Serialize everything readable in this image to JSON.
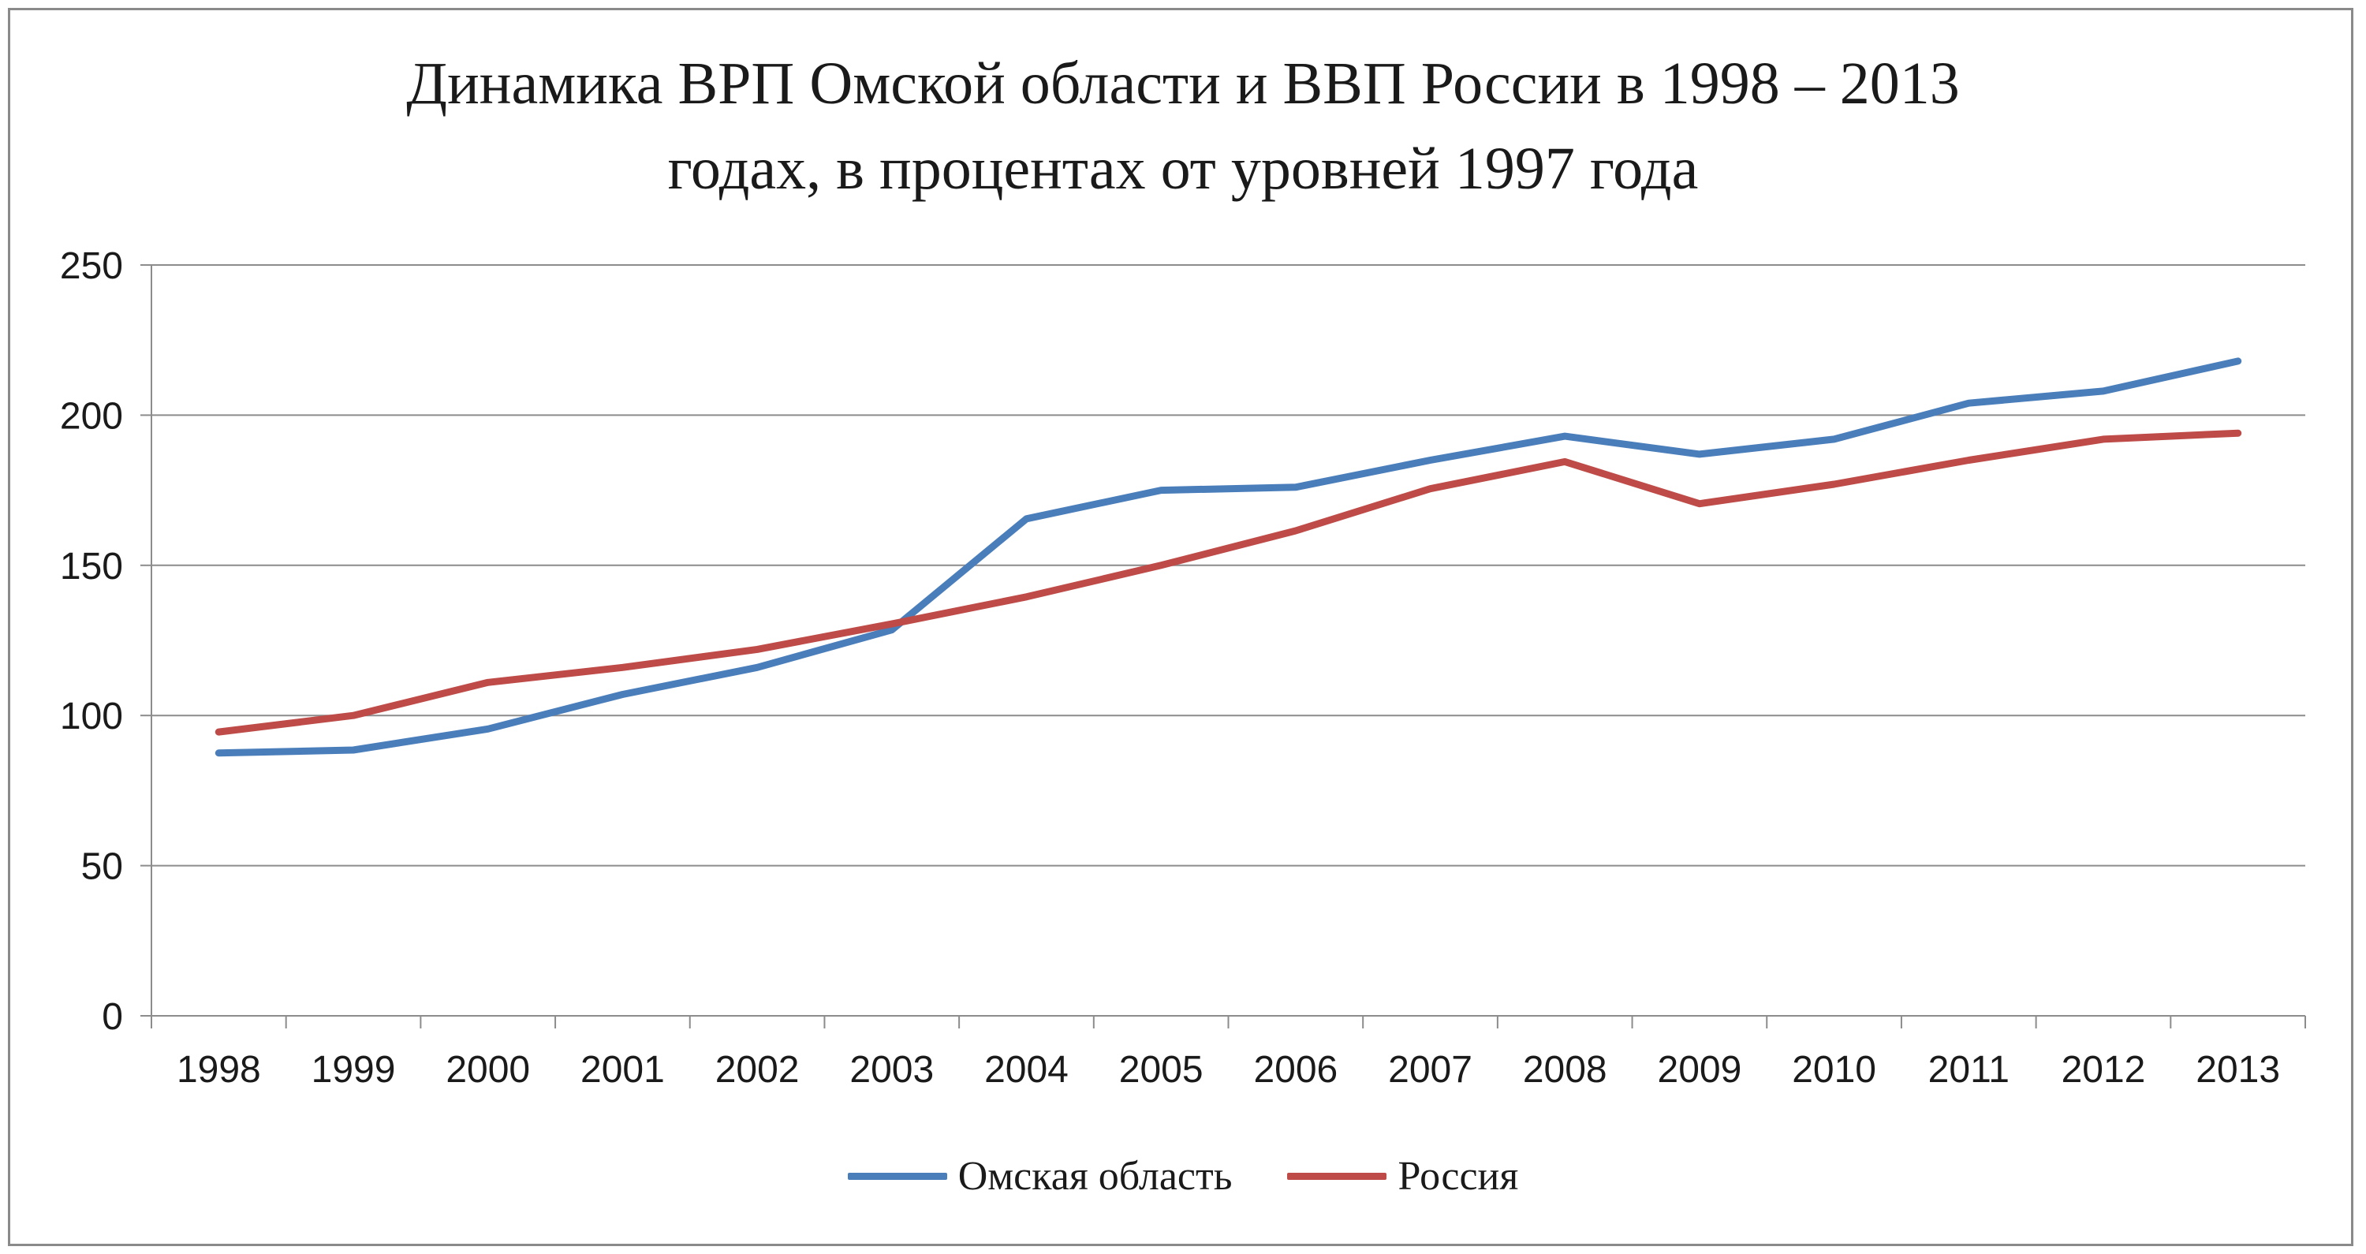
{
  "chart_data": {
    "type": "line",
    "title_lines": [
      "Динамика ВРП Омской области и ВВП России в 1998 – 2013",
      "годах, в процентах от уровней 1997 года"
    ],
    "categories": [
      "1998",
      "1999",
      "2000",
      "2001",
      "2002",
      "2003",
      "2004",
      "2005",
      "2006",
      "2007",
      "2008",
      "2009",
      "2010",
      "2011",
      "2012",
      "2013"
    ],
    "series": [
      {
        "name": "Омская область",
        "color": "#4a7ebb",
        "values": [
          87.5,
          88.5,
          95.5,
          107,
          116,
          128.5,
          165.5,
          175,
          176,
          185,
          193,
          187,
          192,
          204,
          208,
          218
        ]
      },
      {
        "name": "Россия",
        "color": "#be4b48",
        "values": [
          94.5,
          100,
          111,
          116,
          122,
          130.5,
          139.5,
          150,
          161.5,
          175.5,
          184.5,
          170.5,
          177,
          185,
          192,
          194
        ]
      }
    ],
    "ylim": [
      0,
      250
    ],
    "yticks": [
      0,
      50,
      100,
      150,
      200,
      250
    ],
    "grid": "horizontal",
    "legend_position": "bottom"
  }
}
